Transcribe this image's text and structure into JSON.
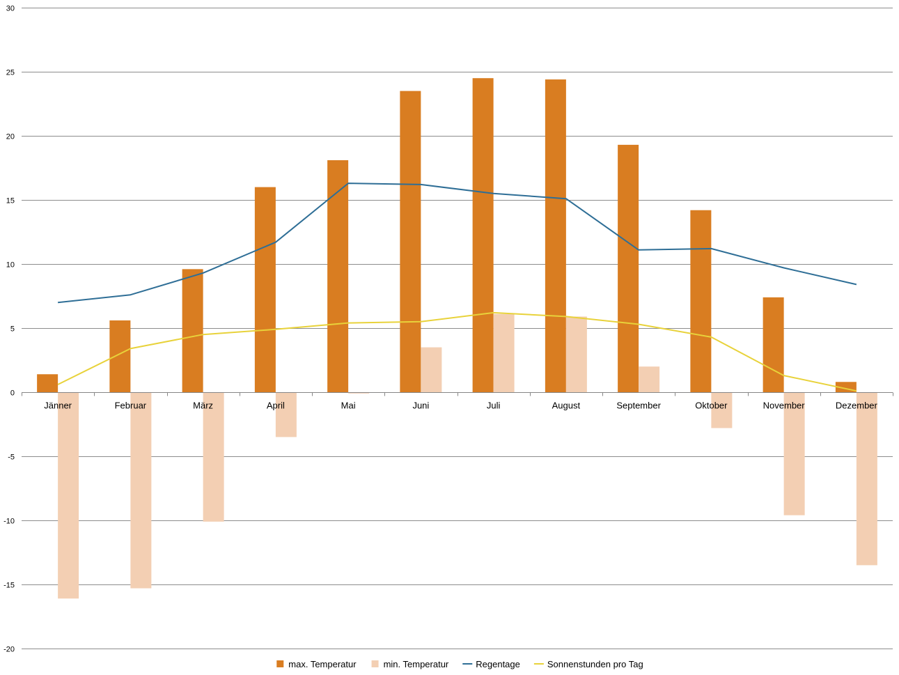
{
  "chart_data": {
    "type": "bar",
    "categories": [
      "Jänner",
      "Februar",
      "März",
      "April",
      "Mai",
      "Juni",
      "Juli",
      "August",
      "September",
      "Oktober",
      "November",
      "Dezember"
    ],
    "series": [
      {
        "name": "max. Temperatur",
        "kind": "bar",
        "color": "#d97d21",
        "values": [
          1.4,
          5.6,
          9.6,
          16.0,
          18.1,
          23.5,
          24.5,
          24.4,
          19.3,
          14.2,
          7.4,
          0.8
        ]
      },
      {
        "name": "min. Temperatur",
        "kind": "bar",
        "color": "#f3cfb3",
        "values": [
          -16.1,
          -15.3,
          -10.1,
          -3.5,
          -0.1,
          3.5,
          6.1,
          5.9,
          2.0,
          -2.8,
          -9.6,
          -13.5
        ]
      },
      {
        "name": "Regentage",
        "kind": "line",
        "color": "#2e6e96",
        "values": [
          7.0,
          7.6,
          9.3,
          11.7,
          16.3,
          16.2,
          15.5,
          15.1,
          11.1,
          11.2,
          9.7,
          8.4
        ]
      },
      {
        "name": "Sonnenstunden pro Tag",
        "kind": "line",
        "color": "#e8d23a",
        "values": [
          0.6,
          3.4,
          4.5,
          4.9,
          5.4,
          5.5,
          6.2,
          5.9,
          5.3,
          4.3,
          1.3,
          0.1
        ]
      }
    ],
    "ylim": [
      -20,
      30
    ],
    "yticks": [
      -20,
      -15,
      -10,
      -5,
      0,
      5,
      10,
      15,
      20,
      25,
      30
    ],
    "grid": true,
    "legend_position": "bottom",
    "title": "",
    "xlabel": "",
    "ylabel": "",
    "gridline_color": "#8c8c8c",
    "axis_color": "#868686"
  }
}
